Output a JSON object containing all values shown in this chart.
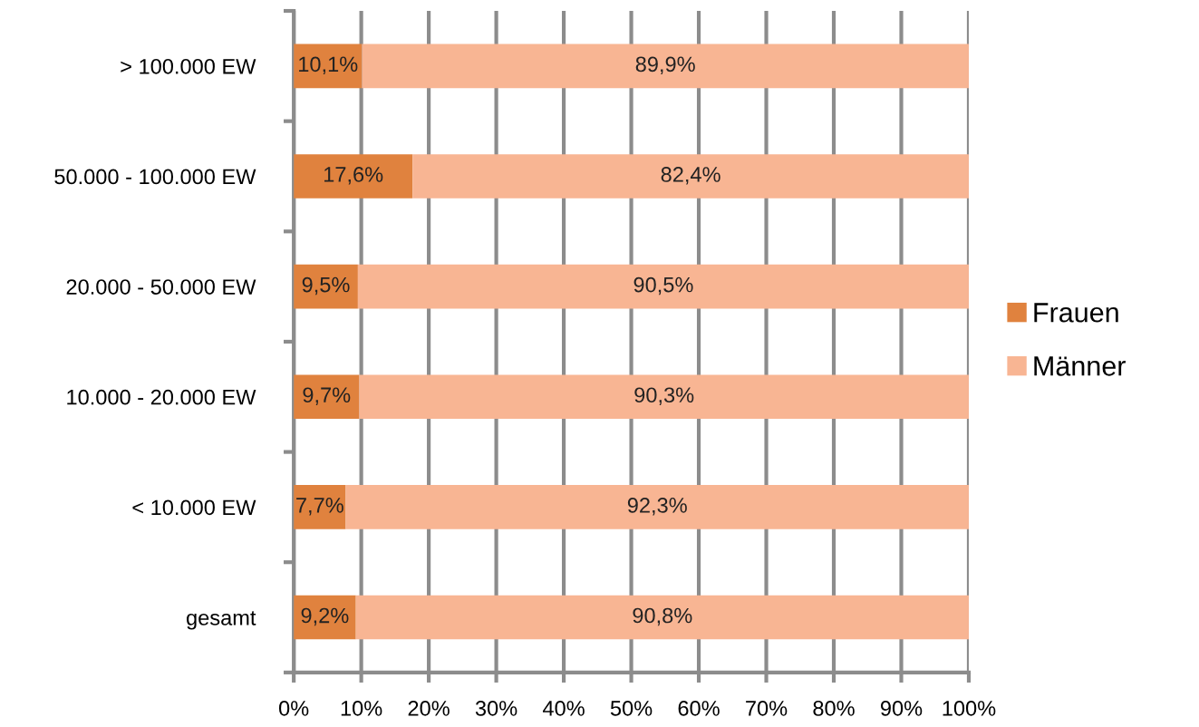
{
  "chart_data": {
    "type": "bar",
    "orientation": "horizontal",
    "stacked": true,
    "categories": [
      "> 100.000 EW",
      "50.000 - 100.000 EW",
      "20.000 - 50.000 EW",
      "10.000 - 20.000 EW",
      "< 10.000 EW",
      "gesamt"
    ],
    "series": [
      {
        "name": "Frauen",
        "color": "#e0823e",
        "values": [
          10.1,
          17.6,
          9.5,
          9.7,
          7.7,
          9.2
        ],
        "value_labels": [
          "10,1%",
          "17,6%",
          "9,5%",
          "9,7%",
          "7,7%",
          "9,2%"
        ]
      },
      {
        "name": "Männer",
        "color": "#f8b593",
        "values": [
          89.9,
          82.4,
          90.5,
          90.3,
          92.3,
          90.8
        ],
        "value_labels": [
          "89,9%",
          "82,4%",
          "90,5%",
          "90,3%",
          "92,3%",
          "90,8%"
        ]
      }
    ],
    "xlim": [
      0,
      100
    ],
    "xticks": [
      {
        "value": 0,
        "label": "0%"
      },
      {
        "value": 10,
        "label": "10%"
      },
      {
        "value": 20,
        "label": "20%"
      },
      {
        "value": 30,
        "label": "30%"
      },
      {
        "value": 40,
        "label": "40%"
      },
      {
        "value": 50,
        "label": "50%"
      },
      {
        "value": 60,
        "label": "60%"
      },
      {
        "value": 70,
        "label": "70%"
      },
      {
        "value": 80,
        "label": "80%"
      },
      {
        "value": 90,
        "label": "90%"
      },
      {
        "value": 100,
        "label": "100%"
      }
    ],
    "grid": "x",
    "legend": "right"
  }
}
